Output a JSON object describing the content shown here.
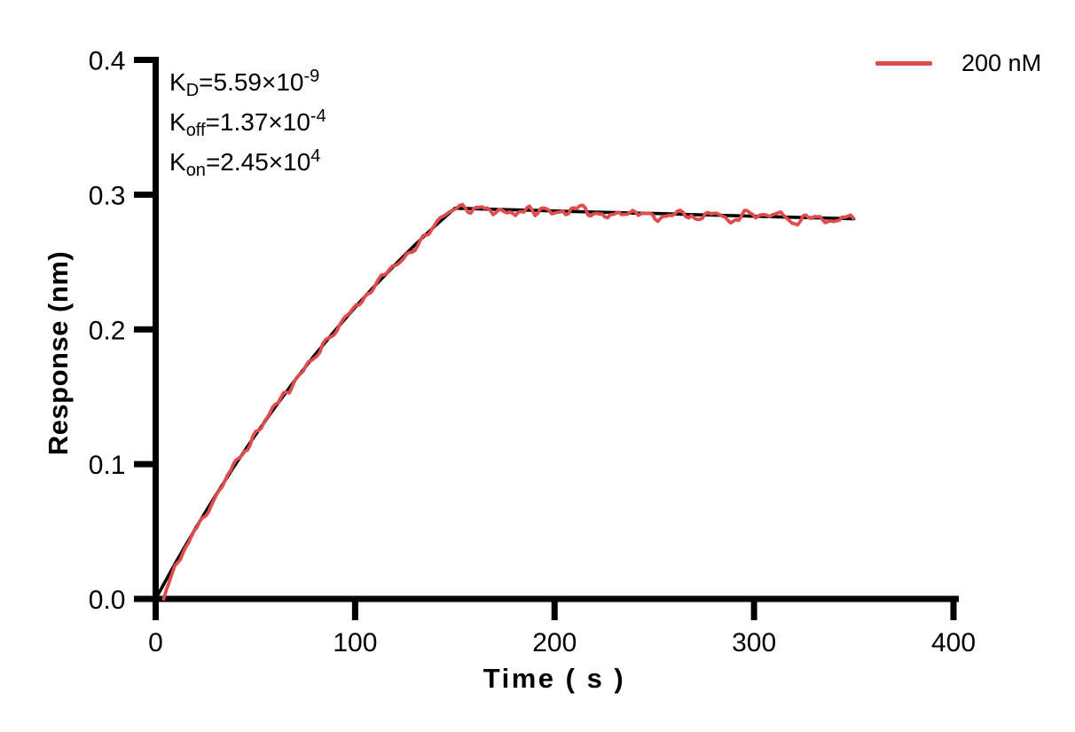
{
  "figure": {
    "background": "#ffffff",
    "axis_color": "#000000"
  },
  "chart_data": {
    "type": "line",
    "title": "",
    "xlabel": "Time ( s )",
    "ylabel": "Response (nm)",
    "xlim": [
      0,
      400
    ],
    "ylim": [
      0.0,
      0.4
    ],
    "x_ticks": [
      0,
      100,
      200,
      300,
      400
    ],
    "y_ticks": [
      0.0,
      0.1,
      0.2,
      0.3,
      0.4
    ],
    "x_tick_labels": [
      "0",
      "100",
      "200",
      "300",
      "400"
    ],
    "y_tick_labels": [
      "0.0",
      "0.1",
      "0.2",
      "0.3",
      "0.4"
    ],
    "grid": false,
    "legend": {
      "position": "top-right",
      "entries": [
        {
          "label": "200 nM",
          "color": "#DF4C4E"
        }
      ]
    },
    "annotations": [
      {
        "base": "K",
        "sub": "D",
        "mid": "=5.59×10",
        "sup": "-9"
      },
      {
        "base": "K",
        "sub": "off",
        "mid": "=1.37×10",
        "sup": "-4"
      },
      {
        "base": "K",
        "sub": "on",
        "mid": "=2.45×10",
        "sup": "4"
      }
    ],
    "series": [
      {
        "name": "200 nM",
        "role": "measured",
        "color": "#DF4C4E",
        "line_width": 3.8,
        "t_start": 4,
        "t_end": 350,
        "sample_step": 1.4,
        "noise_seed": 11,
        "noise_amplitude_fast": 0.0045,
        "noise_amplitude_slow": 0.0028,
        "start_dip": 0.011
      },
      {
        "name": "fit",
        "role": "fit",
        "color": "#000000",
        "line_width": 3.6,
        "association_end_s": 150,
        "points": [
          [
            0,
            0
          ],
          [
            10,
            0.0269
          ],
          [
            20,
            0.0524
          ],
          [
            30,
            0.0767
          ],
          [
            40,
            0.0998
          ],
          [
            50,
            0.1217
          ],
          [
            60,
            0.1426
          ],
          [
            70,
            0.1625
          ],
          [
            80,
            0.1814
          ],
          [
            90,
            0.1993
          ],
          [
            100,
            0.2164
          ],
          [
            110,
            0.2326
          ],
          [
            120,
            0.248
          ],
          [
            130,
            0.2627
          ],
          [
            140,
            0.2767
          ],
          [
            150,
            0.2899
          ],
          [
            160,
            0.2895
          ],
          [
            170,
            0.2891
          ],
          [
            180,
            0.2887
          ],
          [
            190,
            0.2883
          ],
          [
            200,
            0.2879
          ],
          [
            210,
            0.2875
          ],
          [
            220,
            0.2871
          ],
          [
            230,
            0.2867
          ],
          [
            240,
            0.2863
          ],
          [
            250,
            0.286
          ],
          [
            260,
            0.2856
          ],
          [
            270,
            0.2852
          ],
          [
            280,
            0.2848
          ],
          [
            290,
            0.2844
          ],
          [
            300,
            0.284
          ],
          [
            310,
            0.2836
          ],
          [
            320,
            0.2832
          ],
          [
            330,
            0.2828
          ],
          [
            340,
            0.2825
          ],
          [
            350,
            0.2821
          ]
        ]
      }
    ]
  }
}
